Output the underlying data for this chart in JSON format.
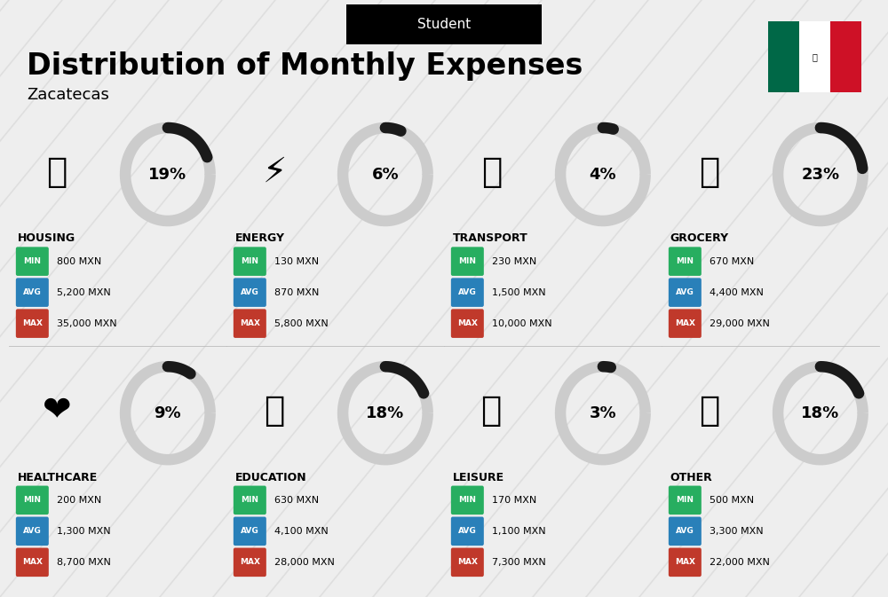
{
  "title": "Distribution of Monthly Expenses",
  "subtitle": "Student",
  "location": "Zacatecas",
  "bg_color": "#eeeeee",
  "categories": [
    {
      "name": "HOUSING",
      "pct": 19,
      "emoji": "🏢",
      "min": "800 MXN",
      "avg": "5,200 MXN",
      "max": "35,000 MXN",
      "col": 0,
      "row": 0
    },
    {
      "name": "ENERGY",
      "pct": 6,
      "emoji": "⚡",
      "min": "130 MXN",
      "avg": "870 MXN",
      "max": "5,800 MXN",
      "col": 1,
      "row": 0
    },
    {
      "name": "TRANSPORT",
      "pct": 4,
      "emoji": "🚌",
      "min": "230 MXN",
      "avg": "1,500 MXN",
      "max": "10,000 MXN",
      "col": 2,
      "row": 0
    },
    {
      "name": "GROCERY",
      "pct": 23,
      "emoji": "🛒",
      "min": "670 MXN",
      "avg": "4,400 MXN",
      "max": "29,000 MXN",
      "col": 3,
      "row": 0
    },
    {
      "name": "HEALTHCARE",
      "pct": 9,
      "emoji": "❤️",
      "min": "200 MXN",
      "avg": "1,300 MXN",
      "max": "8,700 MXN",
      "col": 0,
      "row": 1
    },
    {
      "name": "EDUCATION",
      "pct": 18,
      "emoji": "🎓",
      "min": "630 MXN",
      "avg": "4,100 MXN",
      "max": "28,000 MXN",
      "col": 1,
      "row": 1
    },
    {
      "name": "LEISURE",
      "pct": 3,
      "emoji": "🛍️",
      "min": "170 MXN",
      "avg": "1,100 MXN",
      "max": "7,300 MXN",
      "col": 2,
      "row": 1
    },
    {
      "name": "OTHER",
      "pct": 18,
      "emoji": "💰",
      "min": "500 MXN",
      "avg": "3,300 MXN",
      "max": "22,000 MXN",
      "col": 3,
      "row": 1
    }
  ],
  "min_color": "#27ae60",
  "avg_color": "#2980b9",
  "max_color": "#c0392b",
  "donut_filled": "#1a1a1a",
  "donut_empty": "#cccccc",
  "flag_green": "#006847",
  "flag_white": "#ffffff",
  "flag_red": "#ce1126"
}
